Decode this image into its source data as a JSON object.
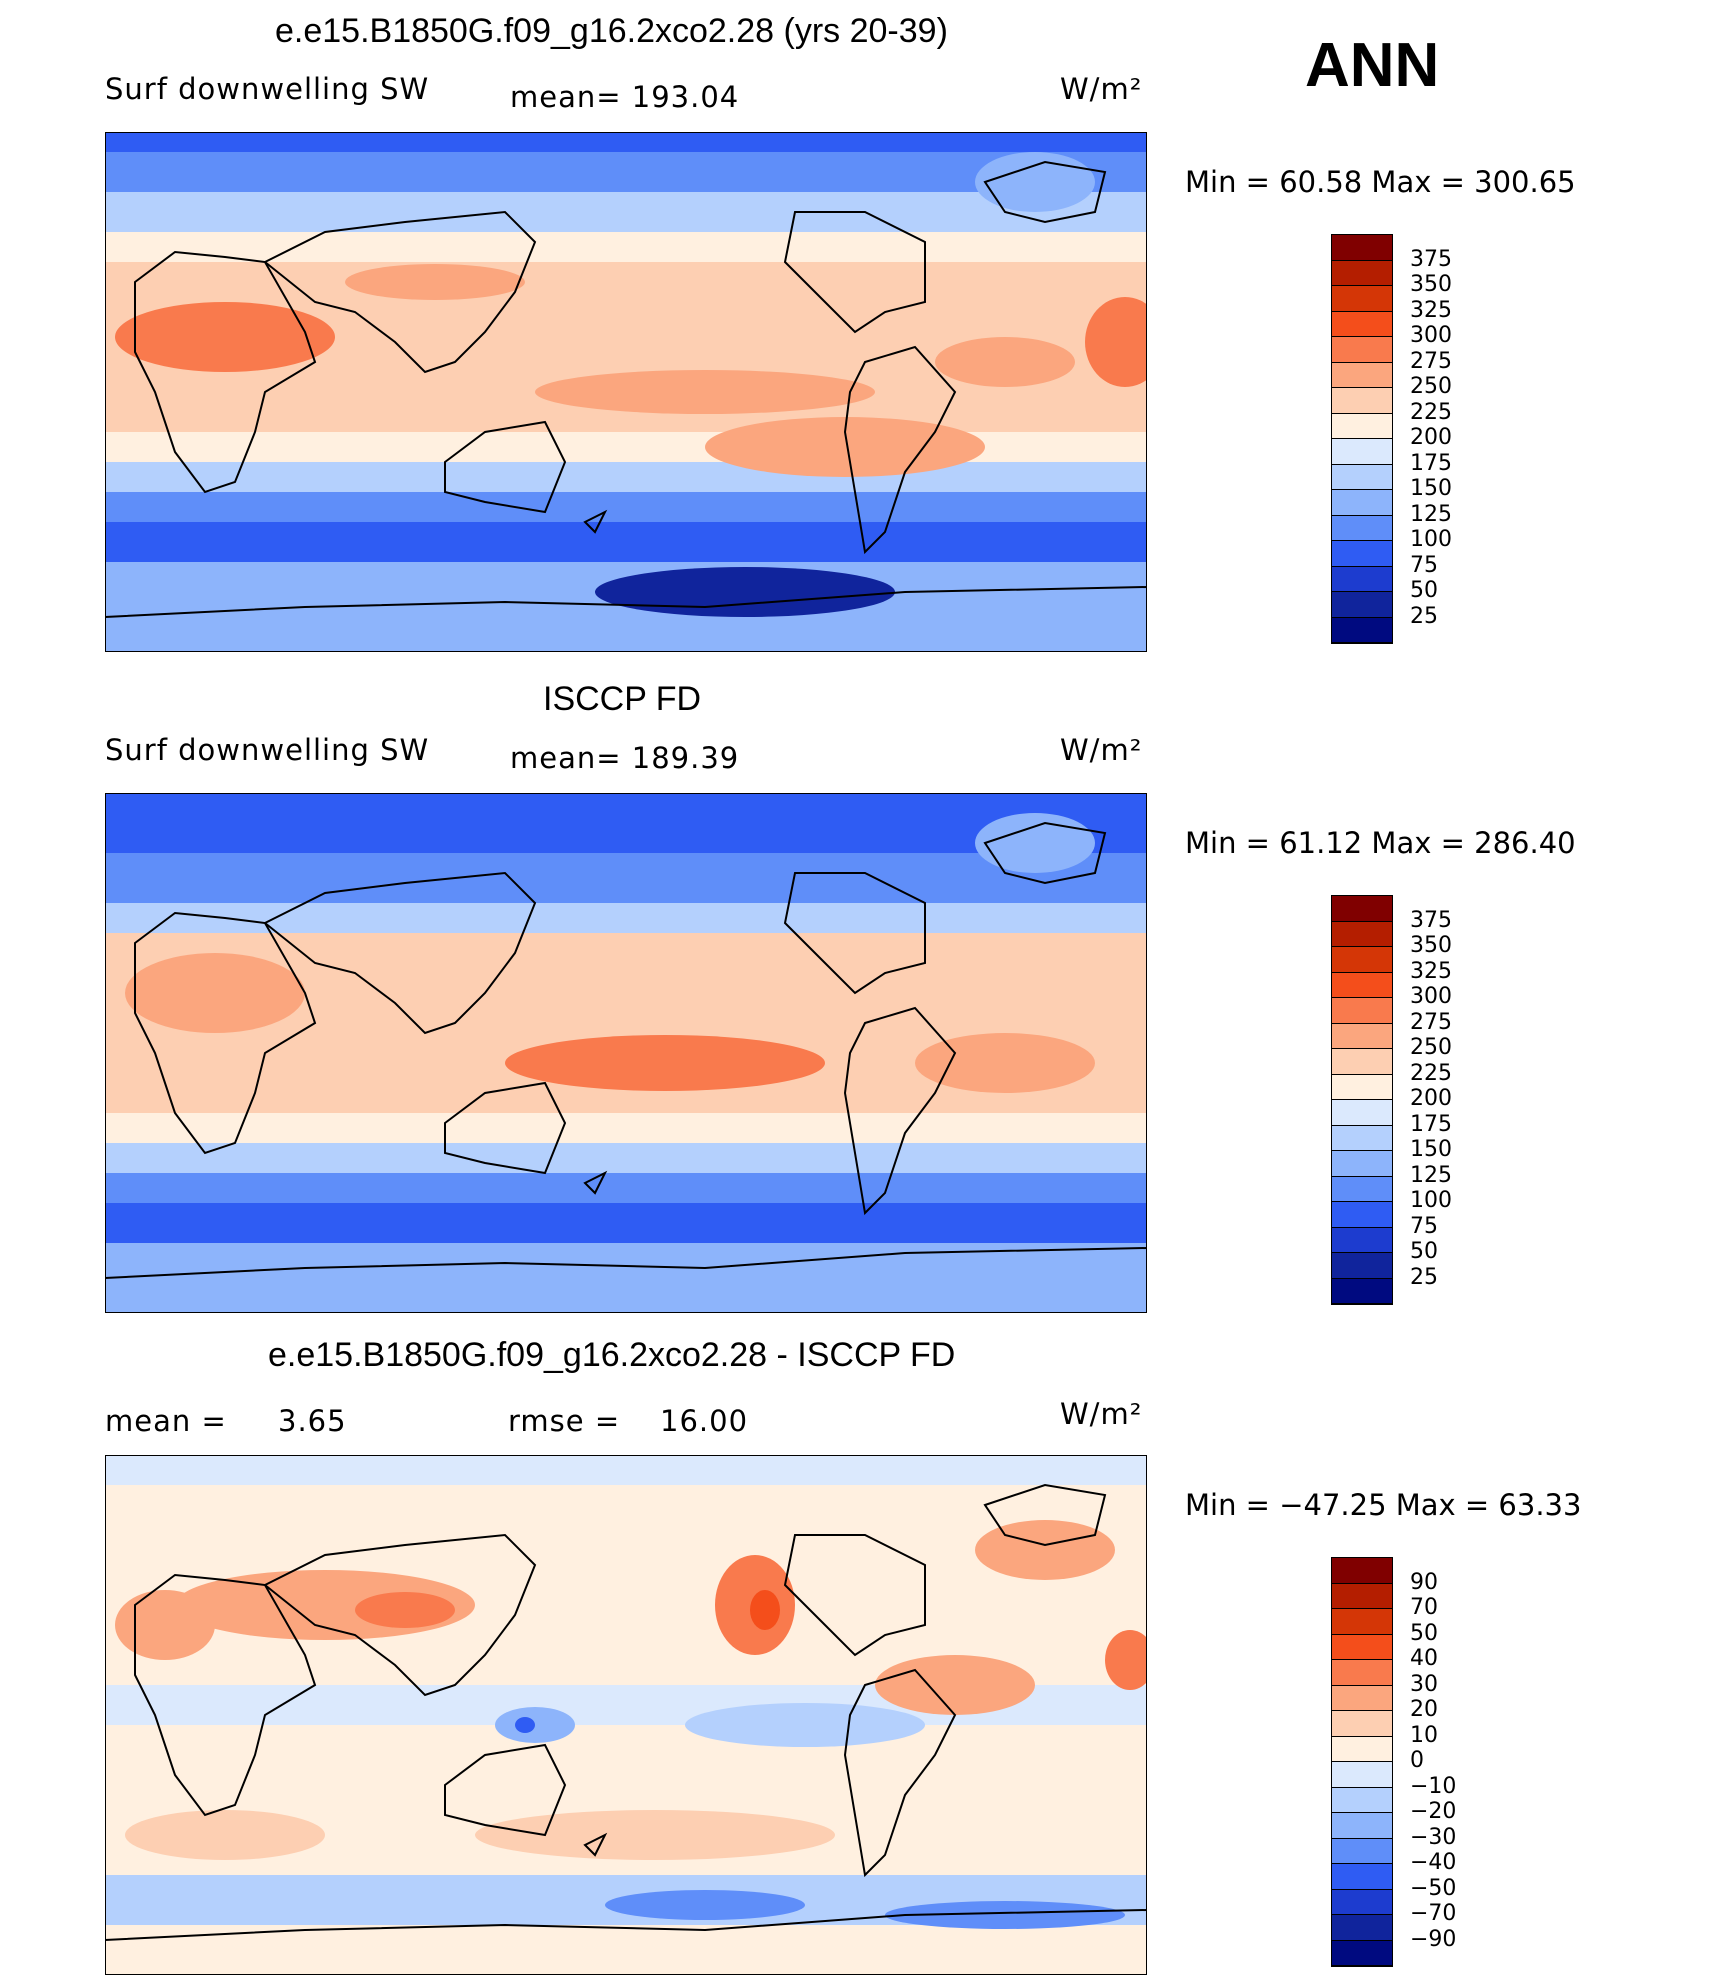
{
  "season": "ANN",
  "panels": [
    {
      "title": "e.e15.B1850G.f09_g16.2xco2.28 (yrs 20-39)",
      "left_label": "Surf  downwelling  SW",
      "center_label": "mean=  193.04",
      "units": "W/m²",
      "minmax": "Min  =    60.58  Max  =  300.65",
      "colorbar": {
        "labels": [
          "375",
          "350",
          "325",
          "300",
          "275",
          "250",
          "225",
          "200",
          "175",
          "150",
          "125",
          "100",
          "75",
          "50",
          "25"
        ],
        "colors": [
          "#800000",
          "#b41e00",
          "#d43606",
          "#f44e1b",
          "#f97a4d",
          "#fba67e",
          "#fdcfb2",
          "#fff0e0",
          "#dbe9fd",
          "#b4d0fd",
          "#8db4fb",
          "#5f8ef9",
          "#2f5cf3",
          "#1d3ccf",
          "#10249c",
          "#000a80"
        ]
      },
      "chart_data": {
        "type": "heatmap",
        "variable": "Surf  downwelling  SW",
        "units": "W/m²",
        "mean": 193.04,
        "min": 60.58,
        "max": 300.65,
        "contour_levels": [
          25,
          50,
          75,
          100,
          125,
          150,
          175,
          200,
          225,
          250,
          275,
          300,
          325,
          350,
          375
        ]
      }
    },
    {
      "title": "ISCCP FD",
      "left_label": "Surf  downwelling  SW",
      "center_label": "mean=  189.39",
      "units": "W/m²",
      "minmax": "Min  =    61.12  Max  =  286.40",
      "colorbar": {
        "labels": [
          "375",
          "350",
          "325",
          "300",
          "275",
          "250",
          "225",
          "200",
          "175",
          "150",
          "125",
          "100",
          "75",
          "50",
          "25"
        ],
        "colors": [
          "#800000",
          "#b41e00",
          "#d43606",
          "#f44e1b",
          "#f97a4d",
          "#fba67e",
          "#fdcfb2",
          "#fff0e0",
          "#dbe9fd",
          "#b4d0fd",
          "#8db4fb",
          "#5f8ef9",
          "#2f5cf3",
          "#1d3ccf",
          "#10249c",
          "#000a80"
        ]
      },
      "chart_data": {
        "type": "heatmap",
        "variable": "Surf  downwelling  SW",
        "units": "W/m²",
        "mean": 189.39,
        "min": 61.12,
        "max": 286.4,
        "contour_levels": [
          25,
          50,
          75,
          100,
          125,
          150,
          175,
          200,
          225,
          250,
          275,
          300,
          325,
          350,
          375
        ]
      }
    },
    {
      "title": "e.e15.B1850G.f09_g16.2xco2.28 - ISCCP FD",
      "left_label": "mean  =",
      "left_value": "3.65",
      "center_label": "rmse  =",
      "center_value": "16.00",
      "units": "W/m²",
      "minmax": "Min  = −47.25  Max  =    63.33",
      "colorbar": {
        "labels": [
          "90",
          "70",
          "50",
          "40",
          "30",
          "20",
          "10",
          "0",
          "−10",
          "−20",
          "−30",
          "−40",
          "−50",
          "−70",
          "−90"
        ],
        "colors": [
          "#800000",
          "#b41e00",
          "#d43606",
          "#f44e1b",
          "#f97a4d",
          "#fba67e",
          "#fdcfb2",
          "#fff0e0",
          "#dbe9fd",
          "#b4d0fd",
          "#8db4fb",
          "#5f8ef9",
          "#2f5cf3",
          "#1d3ccf",
          "#10249c",
          "#000a80"
        ]
      },
      "chart_data": {
        "type": "heatmap",
        "variable": "difference",
        "units": "W/m²",
        "mean": 3.65,
        "rmse": 16.0,
        "min": -47.25,
        "max": 63.33,
        "contour_levels": [
          -90,
          -70,
          -50,
          -40,
          -30,
          -20,
          -10,
          0,
          10,
          20,
          30,
          40,
          50,
          70,
          90
        ]
      }
    }
  ]
}
